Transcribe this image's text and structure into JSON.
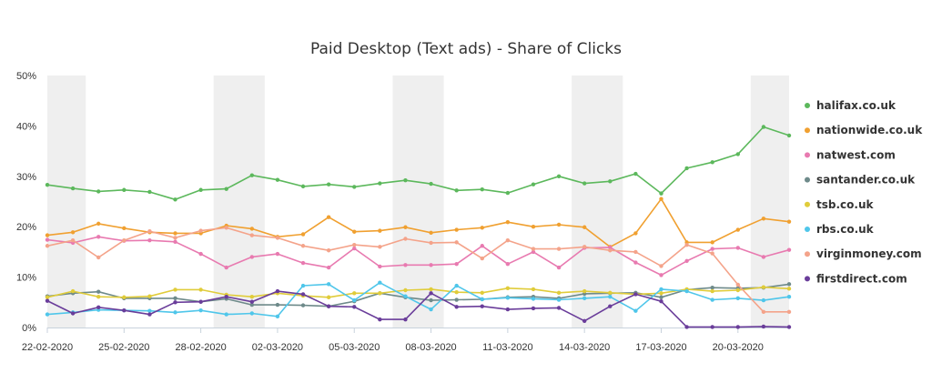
{
  "chart_data": {
    "type": "line",
    "title": "Paid Desktop (Text ads) - Share of Clicks",
    "xlabel": "",
    "ylabel": "",
    "x": [
      "22-02-2020",
      "23-02-2020",
      "24-02-2020",
      "25-02-2020",
      "26-02-2020",
      "27-02-2020",
      "28-02-2020",
      "29-02-2020",
      "01-03-2020",
      "02-03-2020",
      "03-03-2020",
      "04-03-2020",
      "05-03-2020",
      "06-03-2020",
      "07-03-2020",
      "08-03-2020",
      "09-03-2020",
      "10-03-2020",
      "11-03-2020",
      "12-03-2020",
      "13-03-2020",
      "14-03-2020",
      "15-03-2020",
      "16-03-2020",
      "17-03-2020",
      "18-03-2020",
      "19-03-2020",
      "20-03-2020",
      "21-03-2020",
      "22-03-2020"
    ],
    "x_tick_labels": [
      "22-02-2020",
      "25-02-2020",
      "28-02-2020",
      "02-03-2020",
      "05-03-2020",
      "08-03-2020",
      "11-03-2020",
      "14-03-2020",
      "17-03-2020",
      "20-03-2020"
    ],
    "y_tick_labels": [
      "0%",
      "10%",
      "20%",
      "30%",
      "40%",
      "50%"
    ],
    "ylim": [
      0,
      50
    ],
    "grid": false,
    "weekend_bands": [
      [
        "22-02-2020",
        "23-02-2020"
      ],
      [
        "29-02-2020",
        "01-03-2020"
      ],
      [
        "07-03-2020",
        "08-03-2020"
      ],
      [
        "14-03-2020",
        "15-03-2020"
      ],
      [
        "21-03-2020",
        "22-03-2020"
      ]
    ],
    "legend_position": "right",
    "series": [
      {
        "name": "halifax.co.uk",
        "color": "#5cb85c",
        "values": [
          28.3,
          27.6,
          27.0,
          27.3,
          26.9,
          25.4,
          27.3,
          27.5,
          30.2,
          29.3,
          28.0,
          28.4,
          27.9,
          28.6,
          29.2,
          28.5,
          27.2,
          27.4,
          26.7,
          28.4,
          30.0,
          28.6,
          29.0,
          30.5,
          26.6,
          31.6,
          32.8,
          34.4,
          39.8,
          38.1
        ]
      },
      {
        "name": "nationwide.co.uk",
        "color": "#f0a030",
        "values": [
          18.3,
          18.9,
          20.6,
          19.7,
          18.9,
          18.7,
          18.7,
          20.2,
          19.6,
          18.0,
          18.5,
          21.9,
          19.0,
          19.2,
          19.9,
          18.8,
          19.4,
          19.8,
          20.9,
          20.0,
          20.4,
          19.9,
          16.0,
          18.7,
          25.5,
          16.9,
          16.9,
          19.4,
          21.6,
          21.0
        ]
      },
      {
        "name": "natwest.com",
        "color": "#e87ab0",
        "values": [
          17.4,
          16.8,
          18.0,
          17.2,
          17.3,
          17.0,
          14.6,
          11.9,
          14.0,
          14.6,
          12.8,
          11.9,
          15.7,
          12.1,
          12.4,
          12.4,
          12.6,
          16.2,
          12.6,
          15.0,
          11.9,
          15.8,
          15.9,
          12.9,
          10.4,
          13.2,
          15.6,
          15.8,
          14.0,
          15.4
        ]
      },
      {
        "name": "santander.co.uk",
        "color": "#6e8a8a",
        "values": [
          6.2,
          6.8,
          7.1,
          5.8,
          5.8,
          5.8,
          5.1,
          5.7,
          4.5,
          4.5,
          4.4,
          4.2,
          5.2,
          6.8,
          6.0,
          5.4,
          5.5,
          5.6,
          6.0,
          6.1,
          5.8,
          6.7,
          6.8,
          6.9,
          6.0,
          7.5,
          7.9,
          7.8,
          7.9,
          8.6
        ]
      },
      {
        "name": "tsb.co.uk",
        "color": "#e0cc3a",
        "values": [
          6.0,
          7.2,
          6.1,
          6.0,
          6.2,
          7.5,
          7.5,
          6.5,
          6.1,
          6.8,
          6.3,
          6.0,
          6.8,
          6.8,
          7.4,
          7.6,
          7.0,
          6.9,
          7.8,
          7.6,
          6.9,
          7.2,
          6.9,
          6.6,
          6.8,
          7.6,
          7.2,
          7.4,
          8.0,
          7.7
        ]
      },
      {
        "name": "rbs.co.uk",
        "color": "#4fc6ea",
        "values": [
          2.6,
          3.0,
          3.5,
          3.4,
          3.3,
          3.0,
          3.4,
          2.6,
          2.8,
          2.2,
          8.3,
          8.6,
          5.4,
          8.9,
          6.2,
          3.6,
          8.3,
          5.6,
          5.9,
          5.7,
          5.5,
          5.8,
          6.1,
          3.3,
          7.6,
          7.2,
          5.5,
          5.8,
          5.4,
          6.1
        ]
      },
      {
        "name": "virginmoney.com",
        "color": "#f4a38a",
        "values": [
          16.2,
          17.3,
          13.9,
          17.3,
          19.1,
          17.8,
          19.2,
          19.8,
          18.3,
          17.8,
          16.2,
          15.3,
          16.4,
          16.0,
          17.6,
          16.8,
          16.9,
          13.7,
          17.3,
          15.6,
          15.6,
          16.0,
          15.3,
          15.0,
          12.2,
          16.4,
          14.7,
          8.5,
          3.1,
          3.1
        ]
      },
      {
        "name": "firstdirect.com",
        "color": "#6a3d9a",
        "values": [
          5.3,
          2.8,
          4.0,
          3.4,
          2.6,
          5.0,
          5.1,
          6.1,
          5.1,
          7.2,
          6.6,
          4.2,
          4.1,
          1.6,
          1.6,
          6.8,
          4.1,
          4.2,
          3.6,
          3.8,
          3.9,
          1.3,
          4.2,
          6.6,
          5.2,
          0.1,
          0.1,
          0.1,
          0.2,
          0.1
        ]
      }
    ]
  }
}
